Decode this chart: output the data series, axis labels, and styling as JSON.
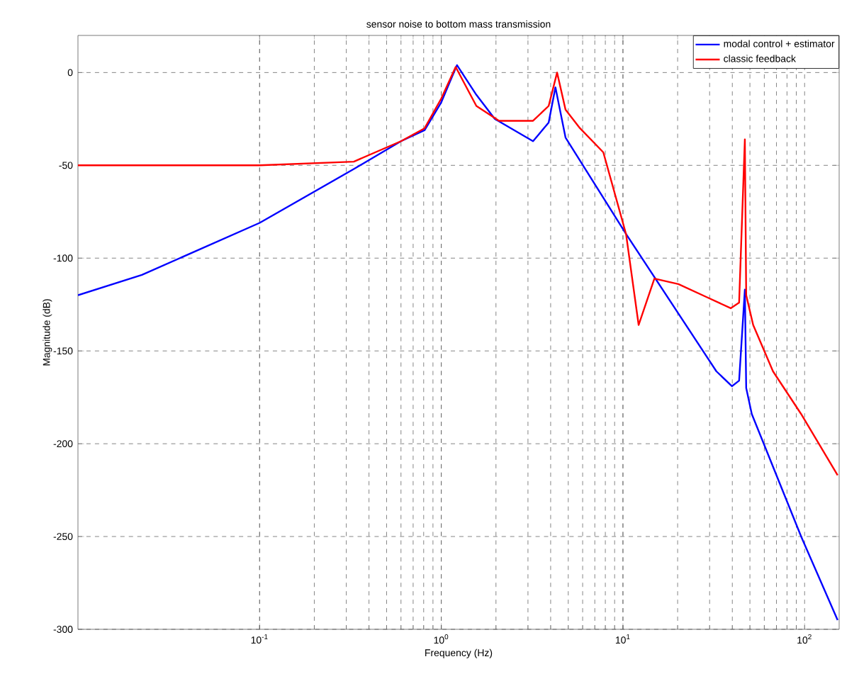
{
  "chart_data": {
    "type": "line",
    "title": "sensor noise to bottom mass transmission",
    "xlabel": "Frequency  (Hz)",
    "ylabel": "Magnitude (dB)",
    "log": "x",
    "grid": true,
    "legend": "top right",
    "marker": "none",
    "line_style": "solid",
    "xlim": [
      0.01,
      155
    ],
    "ylim": [
      -300,
      20
    ],
    "xticks": [
      {
        "value": 0.1,
        "label": "10$^{-1}$"
      },
      {
        "value": 1,
        "label": "10$^{0}$"
      },
      {
        "value": 10,
        "label": "10$^{1}$"
      },
      {
        "value": 100,
        "label": "10$^{2}$"
      }
    ],
    "yticks": [
      -300,
      -250,
      -200,
      -150,
      -100,
      -50,
      0
    ],
    "series": [
      {
        "name": "modal control + estimator",
        "color": "#0000ff",
        "x": [
          0.01,
          0.0225,
          0.1,
          0.33,
          0.6,
          0.81,
          1.0,
          1.22,
          1.56,
          1.97,
          3.2,
          3.9,
          4.25,
          4.83,
          10.4,
          32.7,
          39.8,
          43.6,
          46.9,
          47.7,
          51.2,
          95.7,
          152
        ],
        "values": [
          -120,
          -109,
          -81,
          -52,
          -37,
          -31,
          -16,
          4,
          -12,
          -25,
          -37,
          -27,
          -8,
          -35,
          -87,
          -161,
          -169,
          -166,
          -117,
          -170,
          -184,
          -250,
          -295
        ]
      },
      {
        "name": "classic feedback",
        "color": "#ff0000",
        "x": [
          0.01,
          0.1,
          0.33,
          0.6,
          0.81,
          1.0,
          1.2,
          1.56,
          2.08,
          3.2,
          3.9,
          4.34,
          4.83,
          5.8,
          7.8,
          10.4,
          12.2,
          14.9,
          20.2,
          28.9,
          39.2,
          43.6,
          46.9,
          47.7,
          52.1,
          67,
          95.7,
          152
        ],
        "values": [
          -50,
          -50,
          -48,
          -37,
          -30,
          -14,
          3,
          -18,
          -26,
          -26,
          -18,
          0,
          -20,
          -30,
          -43,
          -87,
          -136,
          -111,
          -114,
          -121,
          -127,
          -124,
          -36,
          -120,
          -136,
          -161,
          -184,
          -217
        ]
      }
    ]
  }
}
